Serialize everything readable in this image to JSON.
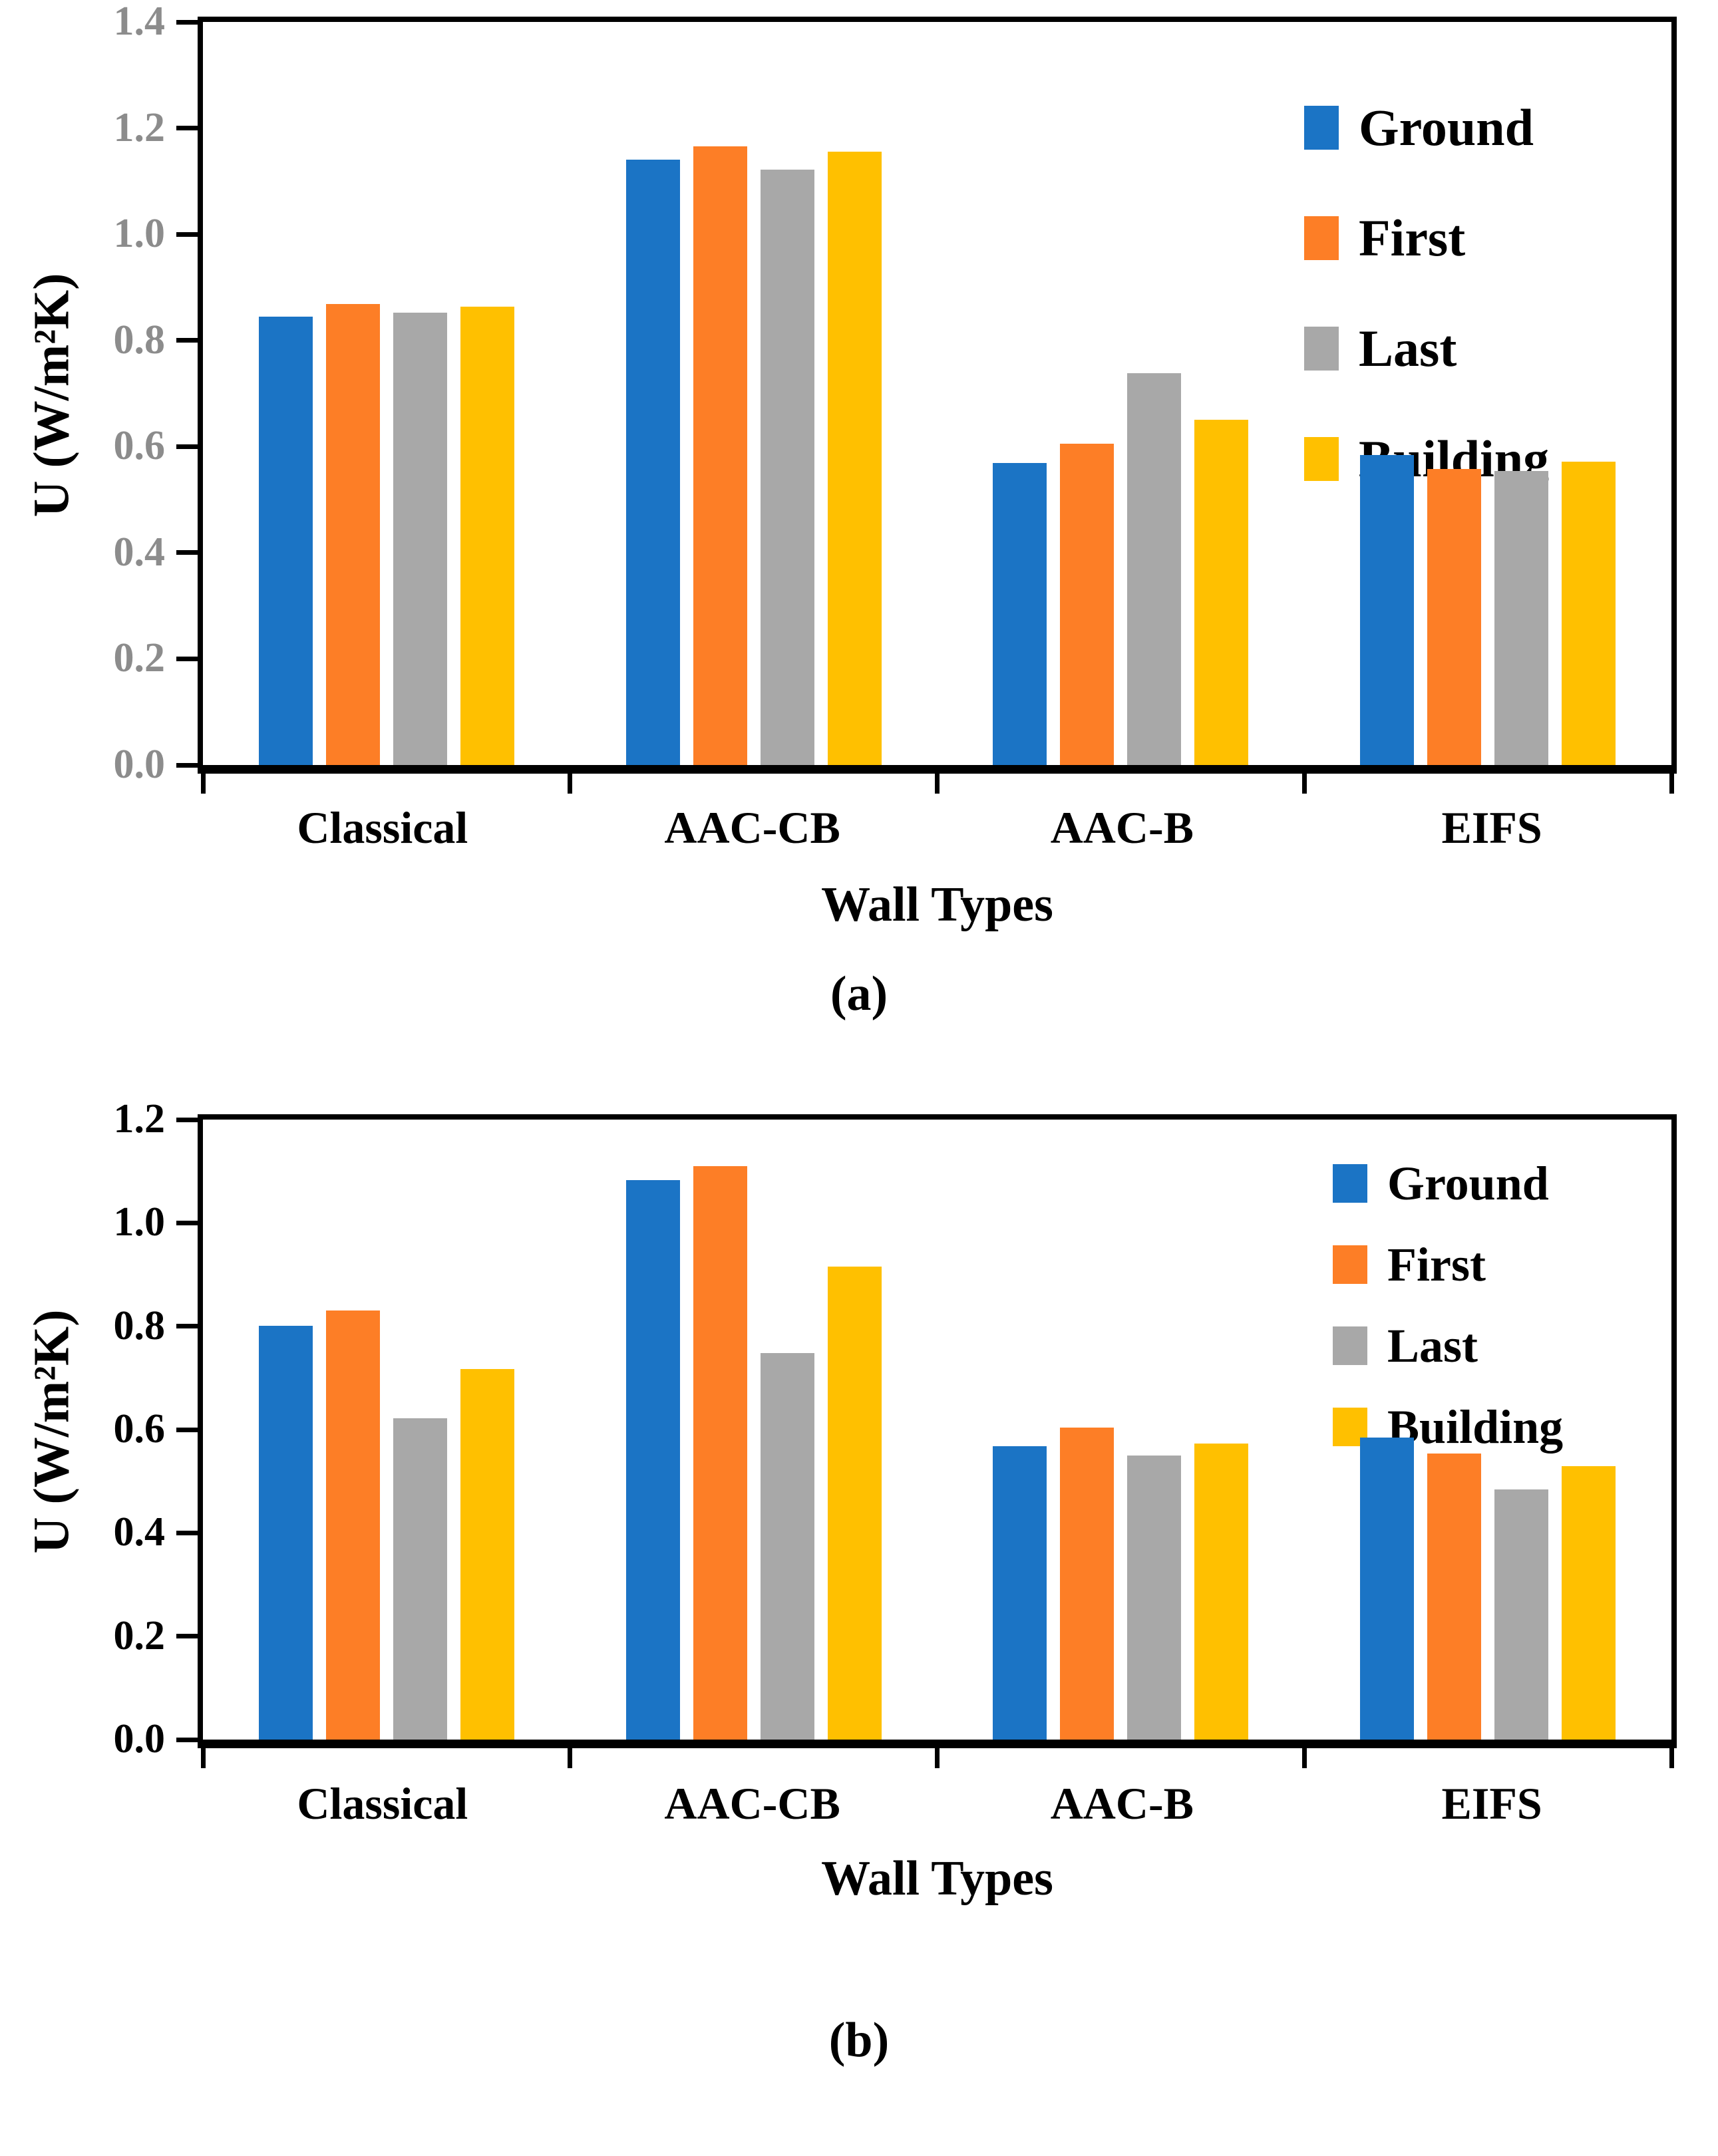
{
  "page": {
    "background": "#FFFFFF"
  },
  "captions": [
    {
      "label": "(a)"
    },
    {
      "label": "(b)"
    }
  ],
  "chart_data": [
    {
      "type": "bar",
      "panel": "a",
      "title": "",
      "xlabel": "Wall Types",
      "ylabel": "U (W/m²K)",
      "categories": [
        "Classical",
        "AAC-CB",
        "AAC-B",
        "EIFS"
      ],
      "series": [
        {
          "name": "Ground",
          "color": "#1B74C5",
          "values": [
            0.845,
            1.141,
            0.569,
            0.584
          ]
        },
        {
          "name": "First",
          "color": "#FD7E26",
          "values": [
            0.869,
            1.166,
            0.605,
            0.558
          ]
        },
        {
          "name": "Last",
          "color": "#A8A8A8",
          "values": [
            0.852,
            1.122,
            0.738,
            0.554
          ]
        },
        {
          "name": "Building",
          "color": "#FFC000",
          "values": [
            0.864,
            1.156,
            0.651,
            0.571
          ]
        }
      ],
      "ylim": [
        0,
        1.4
      ],
      "ytick_step": 0.2,
      "yticks": [
        "1.4",
        "1.2",
        "1.0",
        "0.8",
        "0.6",
        "0.4",
        "0.2",
        "0.0"
      ],
      "tick_label_color": "#8C8C8C",
      "axis_color": "#000000",
      "legend_position": "upper-right",
      "grid": false
    },
    {
      "type": "bar",
      "panel": "b",
      "title": "",
      "xlabel": "Wall Types",
      "ylabel": "U (W/m²K)",
      "categories": [
        "Classical",
        "AAC-CB",
        "AAC-B",
        "EIFS"
      ],
      "series": [
        {
          "name": "Ground",
          "color": "#1B74C5",
          "values": [
            0.801,
            1.083,
            0.568,
            0.585
          ]
        },
        {
          "name": "First",
          "color": "#FD7E26",
          "values": [
            0.83,
            1.11,
            0.604,
            0.554
          ]
        },
        {
          "name": "Last",
          "color": "#A8A8A8",
          "values": [
            0.622,
            0.748,
            0.55,
            0.484
          ]
        },
        {
          "name": "Building",
          "color": "#FFC000",
          "values": [
            0.717,
            0.916,
            0.573,
            0.529
          ]
        }
      ],
      "ylim": [
        0,
        1.2
      ],
      "ytick_step": 0.2,
      "yticks": [
        "1.2",
        "1.0",
        "0.8",
        "0.6",
        "0.4",
        "0.2",
        "0.0"
      ],
      "tick_label_color": "#000000",
      "axis_color": "#000000",
      "legend_position": "upper-right",
      "grid": false
    }
  ]
}
